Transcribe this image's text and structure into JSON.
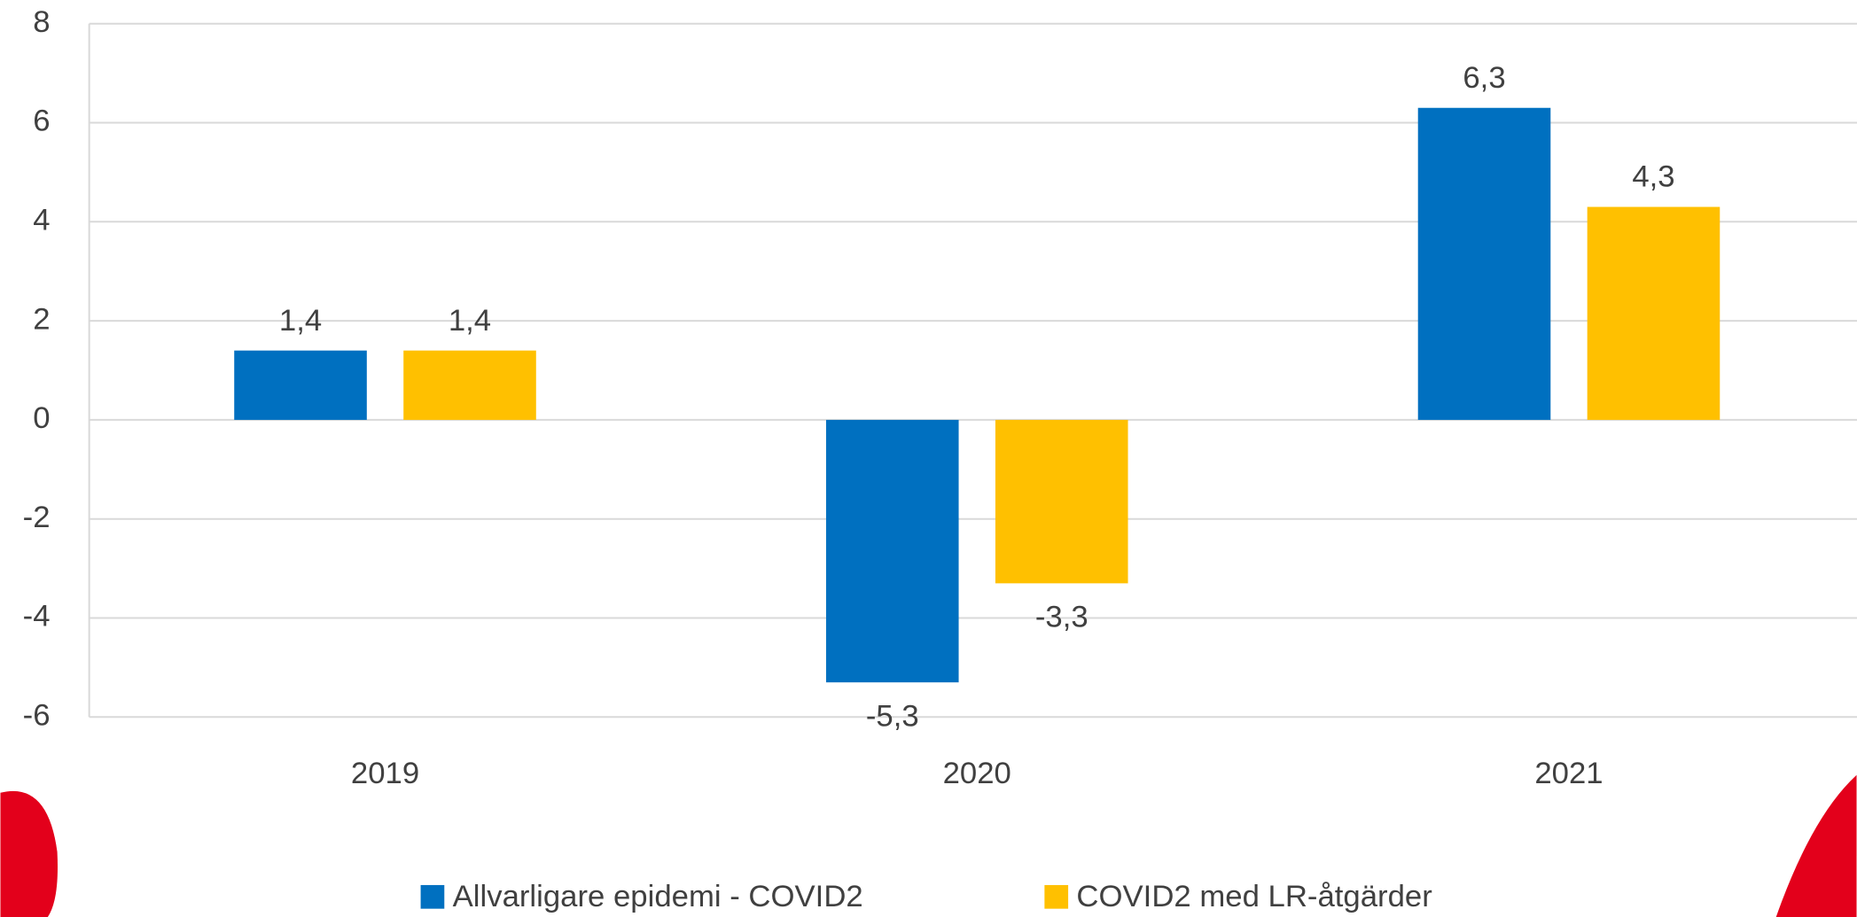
{
  "chart_data": {
    "type": "bar",
    "categories": [
      "2019",
      "2020",
      "2021"
    ],
    "series": [
      {
        "name": "Allvarligare epidemi - COVID2",
        "color": "#0070c0",
        "values": [
          1.4,
          -5.3,
          6.3
        ],
        "value_labels": [
          "1,4",
          "-5,3",
          "6,3"
        ]
      },
      {
        "name": "COVID2 med LR-åtgärder",
        "color": "#ffc000",
        "values": [
          1.4,
          -3.3,
          4.3
        ],
        "value_labels": [
          "1,4",
          "-3,3",
          "4,3"
        ]
      }
    ],
    "ylim": [
      -6,
      8
    ],
    "yticks": [
      -6,
      -4,
      -2,
      0,
      2,
      4,
      6,
      8
    ],
    "grid": true,
    "legend": "bottom"
  }
}
